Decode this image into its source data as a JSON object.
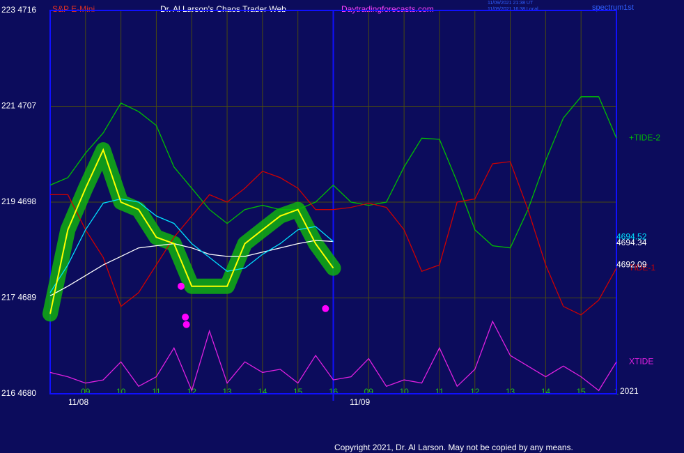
{
  "chart_data": {
    "type": "line",
    "title": "Dr. Al Larson's Chaos Trader Web",
    "symbol": "S&P E-Mini",
    "site": "Daytradingforecasts.com",
    "timestamps": [
      "11/09/2021 21:38 UT",
      "11/09/2021 16:38 Local"
    ],
    "corner_label": "spectrum1st",
    "year_label": "2021",
    "date_labels": [
      "11/08",
      "11/09"
    ],
    "footer": "Copyright 2021, Dr. Al Larson. May not be copied by any means.",
    "xlim": [
      0,
      16
    ],
    "xticks": [
      {
        "value": 1,
        "label": "09"
      },
      {
        "value": 2,
        "label": "10"
      },
      {
        "value": 3,
        "label": "11"
      },
      {
        "value": 4,
        "label": "12"
      },
      {
        "value": 5,
        "label": "13"
      },
      {
        "value": 6,
        "label": "14"
      },
      {
        "value": 7,
        "label": "15"
      },
      {
        "value": 8,
        "label": "16"
      },
      {
        "value": 9,
        "label": "09"
      },
      {
        "value": 10,
        "label": "10"
      },
      {
        "value": 11,
        "label": "11"
      },
      {
        "value": 12,
        "label": "12"
      },
      {
        "value": 13,
        "label": "13"
      },
      {
        "value": 14,
        "label": "14"
      },
      {
        "value": 15,
        "label": "15"
      },
      {
        "value": 16,
        "label": "1"
      }
    ],
    "ylim": [
      4680,
      4716
    ],
    "yticks": [
      {
        "value": 4680,
        "label": "216 4680"
      },
      {
        "value": 4689,
        "label": "217 4689"
      },
      {
        "value": 4698,
        "label": "219 4698"
      },
      {
        "value": 4707,
        "label": "221 4707"
      },
      {
        "value": 4716,
        "label": "223 4716"
      }
    ],
    "grid": true,
    "x": [
      0,
      0.5,
      1,
      1.5,
      2,
      2.5,
      3,
      3.5,
      4,
      4.5,
      5,
      5.5,
      6,
      6.5,
      7,
      7.5,
      8,
      8.5,
      9,
      9.5,
      10,
      10.5,
      11,
      11.5,
      12,
      12.5,
      13,
      13.5,
      14,
      14.5,
      15,
      15.5,
      16
    ],
    "series": [
      {
        "color": "#ffff00",
        "values": [
          4687.5,
          4695.4,
          4699.3,
          4702.9,
          4698,
          4697.3,
          4694.7,
          4694.1,
          4690.1,
          4690.1,
          4690.1,
          4694.1,
          4695.4,
          4696.7,
          4697.3,
          4694.1,
          4691.8,
          null,
          null,
          null,
          null,
          null,
          null,
          null,
          null,
          null,
          null,
          null,
          null,
          null,
          null,
          null,
          null
        ]
      },
      {
        "color": "#00e0ff",
        "values": [
          4689.5,
          4692.1,
          4695.4,
          4697.9,
          4698.3,
          4698,
          4696.7,
          4696,
          4694.1,
          4692.8,
          4691.5,
          4691.8,
          4693.1,
          4694.1,
          4695.4,
          4695.7,
          4694.3,
          null,
          null,
          null,
          null,
          null,
          null,
          null,
          null,
          null,
          null,
          null,
          null,
          null,
          null,
          null,
          null
        ]
      },
      {
        "color": "#ffffff",
        "values": [
          4689.2,
          4690.1,
          4691.1,
          4692.1,
          4692.9,
          4693.7,
          4693.9,
          4694.1,
          4693.7,
          4693.1,
          4692.9,
          4692.9,
          4693.3,
          4693.7,
          4694.1,
          4694.4,
          4694.3,
          null,
          null,
          null,
          null,
          null,
          null,
          null,
          null,
          null,
          null,
          null,
          null,
          null,
          null,
          null,
          null
        ]
      },
      {
        "name": "+TIDE-2",
        "color": "#00c000",
        "values": [
          4699.6,
          4700.3,
          4702.6,
          4704.5,
          4707.3,
          4706.5,
          4705.2,
          4701.3,
          4699.3,
          4697.3,
          4696,
          4697.3,
          4697.7,
          4697.3,
          4697.3,
          4698,
          4699.6,
          4698,
          4697.7,
          4698,
          4701.3,
          4704,
          4703.9,
          4699.9,
          4695.4,
          4693.9,
          4693.7,
          4697.3,
          4701.9,
          4705.9,
          4707.9,
          4707.9,
          4704
        ]
      },
      {
        "name": "TIDE-1",
        "color": "#d00000",
        "values": [
          4698.7,
          4698.7,
          4695.4,
          4692.8,
          4688.2,
          4689.5,
          4692.1,
          4694.7,
          4696.7,
          4698.7,
          4698,
          4699.3,
          4700.9,
          4700.3,
          4699.3,
          4697.3,
          4697.3,
          4697.5,
          4697.9,
          4697.5,
          4695.4,
          4691.5,
          4692.1,
          4698,
          4698.3,
          4701.6,
          4701.8,
          4697.3,
          4692.1,
          4688.2,
          4687.4,
          4688.8,
          4691.8
        ]
      },
      {
        "name": "XTIDE",
        "color": "#e020e0",
        "values": [
          4682,
          4681.6,
          4681,
          4681.3,
          4683,
          4680.7,
          4681.6,
          4684.3,
          4680.3,
          4685.9,
          4681,
          4683,
          4682,
          4682.3,
          4681,
          4683.6,
          4681.3,
          4681.6,
          4683.3,
          4680.7,
          4681.3,
          4681,
          4684.3,
          4680.7,
          4682.3,
          4686.8,
          4683.6,
          4682.6,
          4681.6,
          4682.6,
          4681.6,
          4680.3,
          4683
        ]
      }
    ],
    "markers": {
      "color": "#ff00ff",
      "x": [
        3.7,
        3.82,
        3.85,
        7.78
      ],
      "y": [
        4690.1,
        4687.2,
        4686.5,
        4688
      ]
    },
    "end_values": [
      4694.52,
      4694.34,
      4692.09
    ]
  }
}
